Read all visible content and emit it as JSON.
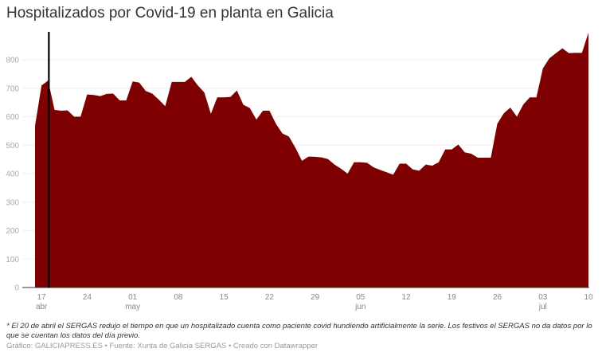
{
  "title": "Hospitalizados por Covid-19 en planta en Galicia",
  "note": "* El 20 de abril el SERGAS redujo el tiempo en que un hospitalizado cuenta como paciente covid hundiendo artificialmente la serie. Los festivos el SERGAS no da datos por lo que se cuentan los datos del día previo.",
  "credit": "Gráfico: GALICIAPRESS.ES • Fuente: Xunta de Galicia SERGAS • Creado con Datawrapper",
  "colors": {
    "area": "#7f0000",
    "marker": "#000000",
    "grid": "#eeeeee"
  },
  "chart_data": {
    "type": "area",
    "title": "Hospitalizados por Covid-19 en planta en Galicia",
    "xlabel": "",
    "ylabel": "",
    "ylim": [
      0,
      900
    ],
    "grid": true,
    "yticks": [
      0,
      100,
      200,
      300,
      400,
      500,
      600,
      700,
      800
    ],
    "xticks": [
      {
        "day": "17",
        "month": "abr"
      },
      {
        "day": "24",
        "month": ""
      },
      {
        "day": "01",
        "month": "may"
      },
      {
        "day": "08",
        "month": ""
      },
      {
        "day": "15",
        "month": ""
      },
      {
        "day": "22",
        "month": ""
      },
      {
        "day": "29",
        "month": ""
      },
      {
        "day": "05",
        "month": "jun"
      },
      {
        "day": "12",
        "month": ""
      },
      {
        "day": "19",
        "month": ""
      },
      {
        "day": "26",
        "month": ""
      },
      {
        "day": "03",
        "month": "jul"
      },
      {
        "day": "10",
        "month": ""
      }
    ],
    "start_date": "16 abr",
    "end_date": "10 jul",
    "marker_line": {
      "date": "18 abr",
      "label": "*"
    },
    "values": [
      568,
      710,
      727,
      624,
      621,
      622,
      600,
      600,
      678,
      676,
      672,
      680,
      681,
      657,
      657,
      724,
      720,
      690,
      681,
      660,
      637,
      722,
      722,
      722,
      740,
      710,
      685,
      610,
      668,
      668,
      669,
      692,
      642,
      630,
      590,
      621,
      621,
      575,
      541,
      530,
      490,
      445,
      460,
      459,
      457,
      451,
      432,
      417,
      400,
      440,
      440,
      438,
      422,
      413,
      405,
      396,
      435,
      435,
      415,
      410,
      432,
      428,
      440,
      485,
      485,
      502,
      475,
      470,
      456,
      456,
      456,
      575,
      612,
      632,
      600,
      643,
      668,
      668,
      770,
      805,
      823,
      840,
      823,
      824,
      824,
      895
    ]
  }
}
